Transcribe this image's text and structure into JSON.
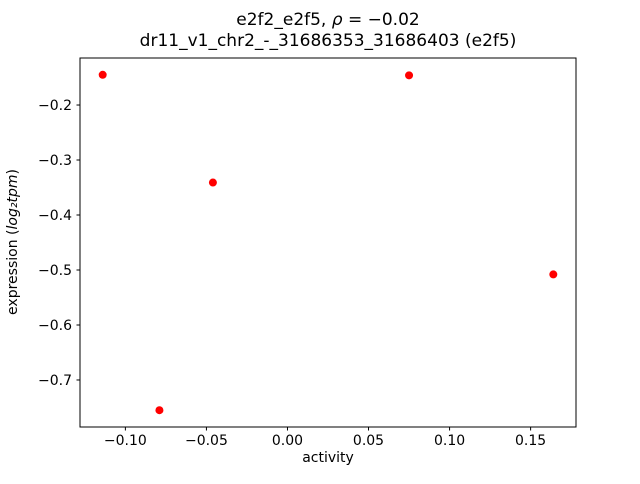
{
  "title1": {
    "pre": "e2f2_e2f5, ",
    "rho": "ρ",
    "post": " = −0.02"
  },
  "title2": "dr11_v1_chr2_-_31686353_31686403 (e2f5)",
  "ylabel_parts": {
    "pre": "expression (",
    "math": "log₂tpm",
    "post": ")"
  },
  "chart_data": {
    "type": "scatter",
    "title": "e2f2_e2f5, ρ = −0.02\ndr11_v1_chr2_-_31686353_31686403 (e2f5)",
    "xlabel": "activity",
    "ylabel": "expression (log₂tpm)",
    "marker_color": "#ff0000",
    "marker_size_px": 4,
    "grid": false,
    "legend": "none",
    "xlim": [
      -0.128,
      0.178
    ],
    "ylim": [
      -0.7855,
      -0.1145
    ],
    "points": [
      {
        "x": -0.114,
        "y": -0.145
      },
      {
        "x": 0.075,
        "y": -0.146
      },
      {
        "x": -0.046,
        "y": -0.341
      },
      {
        "x": 0.164,
        "y": -0.508
      },
      {
        "x": -0.079,
        "y": -0.755
      }
    ],
    "xticks": {
      "values": [
        -0.1,
        -0.05,
        0.0,
        0.05,
        0.1,
        0.15
      ],
      "labels": [
        "−0.10",
        "−0.05",
        "0.00",
        "0.05",
        "0.10",
        "0.15"
      ]
    },
    "yticks": {
      "values": [
        -0.2,
        -0.3,
        -0.4,
        -0.5,
        -0.6,
        -0.7
      ],
      "labels": [
        "−0.2",
        "−0.3",
        "−0.4",
        "−0.5",
        "−0.6",
        "−0.7"
      ]
    }
  }
}
